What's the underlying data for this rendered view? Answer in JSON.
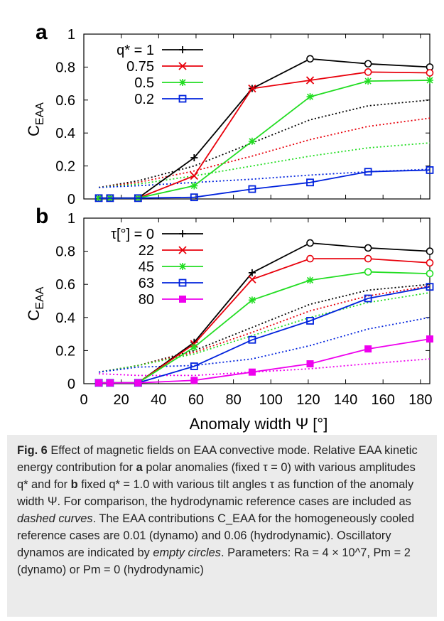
{
  "chart_data": [
    {
      "type": "line",
      "panel": "a",
      "ylabel": "C_EAA",
      "xlabel": "",
      "xlim": [
        0,
        185
      ],
      "ylim": [
        0,
        1
      ],
      "ytick_labels": [
        "0",
        "0.2",
        "0.4",
        "0.6",
        "0.8",
        "1"
      ],
      "legend_position": "top-left",
      "series": [
        {
          "name": "q* = 1",
          "color": "#000000",
          "marker": "plus",
          "x": [
            8,
            14,
            29,
            59,
            90,
            121,
            152,
            185
          ],
          "y": [
            0.005,
            0.005,
            0.005,
            0.25,
            0.67,
            0.85,
            0.82,
            0.8
          ],
          "open_circle_x": [
            121,
            152,
            185
          ]
        },
        {
          "name": "0.75",
          "color": "#e8000b",
          "marker": "x",
          "x": [
            8,
            14,
            29,
            59,
            90,
            121,
            152,
            185
          ],
          "y": [
            0.005,
            0.005,
            0.005,
            0.14,
            0.67,
            0.72,
            0.77,
            0.765
          ],
          "open_circle_x": [
            152,
            185
          ]
        },
        {
          "name": "0.5",
          "color": "#22dd22",
          "marker": "star",
          "x": [
            8,
            14,
            29,
            59,
            90,
            121,
            152,
            185
          ],
          "y": [
            0.005,
            0.005,
            0.005,
            0.08,
            0.35,
            0.62,
            0.715,
            0.72
          ],
          "open_circle_x": []
        },
        {
          "name": "0.2",
          "color": "#0022dd",
          "marker": "square",
          "x": [
            8,
            14,
            29,
            59,
            90,
            121,
            152,
            185
          ],
          "y": [
            0.005,
            0.005,
            0.005,
            0.01,
            0.06,
            0.1,
            0.165,
            0.175
          ],
          "open_circle_x": []
        }
      ],
      "reference_curves": [
        {
          "color": "#000000",
          "x": [
            8,
            29,
            59,
            90,
            121,
            152,
            185
          ],
          "y": [
            0.07,
            0.11,
            0.2,
            0.34,
            0.48,
            0.565,
            0.6
          ]
        },
        {
          "color": "#e8000b",
          "x": [
            8,
            29,
            59,
            90,
            121,
            152,
            185
          ],
          "y": [
            0.07,
            0.1,
            0.17,
            0.26,
            0.36,
            0.44,
            0.49
          ]
        },
        {
          "color": "#22dd22",
          "x": [
            8,
            29,
            59,
            90,
            121,
            152,
            185
          ],
          "y": [
            0.07,
            0.09,
            0.14,
            0.2,
            0.26,
            0.31,
            0.34
          ]
        },
        {
          "color": "#0022dd",
          "x": [
            8,
            29,
            59,
            90,
            121,
            152,
            185
          ],
          "y": [
            0.07,
            0.08,
            0.1,
            0.12,
            0.145,
            0.165,
            0.18
          ]
        }
      ]
    },
    {
      "type": "line",
      "panel": "b",
      "ylabel": "C_EAA",
      "xlabel": "Anomaly width Ψ [°]",
      "xlim": [
        0,
        185
      ],
      "ylim": [
        0,
        1
      ],
      "ytick_labels": [
        "0",
        "0.2",
        "0.4",
        "0.6",
        "0.8",
        "1"
      ],
      "xtick_labels": [
        "0",
        "20",
        "40",
        "60",
        "80",
        "100",
        "120",
        "140",
        "160",
        "180"
      ],
      "legend_position": "top-left",
      "series": [
        {
          "name": "τ[°] = 0",
          "color": "#000000",
          "marker": "plus",
          "x": [
            8,
            14,
            29,
            59,
            90,
            121,
            152,
            185
          ],
          "y": [
            0.005,
            0.005,
            0.005,
            0.25,
            0.67,
            0.85,
            0.82,
            0.8
          ],
          "open_circle_x": [
            121,
            152,
            185
          ]
        },
        {
          "name": "22",
          "color": "#e8000b",
          "marker": "x",
          "x": [
            8,
            14,
            29,
            59,
            90,
            121,
            152,
            185
          ],
          "y": [
            0.005,
            0.005,
            0.005,
            0.24,
            0.63,
            0.755,
            0.755,
            0.73
          ],
          "open_circle_x": [
            121,
            152,
            185
          ]
        },
        {
          "name": "45",
          "color": "#22dd22",
          "marker": "star",
          "x": [
            8,
            14,
            29,
            59,
            90,
            121,
            152,
            185
          ],
          "y": [
            0.005,
            0.005,
            0.005,
            0.22,
            0.505,
            0.625,
            0.675,
            0.665
          ],
          "open_circle_x": [
            152,
            185
          ]
        },
        {
          "name": "63",
          "color": "#0022dd",
          "marker": "square",
          "x": [
            8,
            14,
            29,
            59,
            90,
            121,
            152,
            185
          ],
          "y": [
            0.005,
            0.005,
            0.005,
            0.105,
            0.265,
            0.38,
            0.515,
            0.585
          ],
          "open_circle_x": []
        },
        {
          "name": "80",
          "color": "#ee00ee",
          "marker": "filled-square",
          "x": [
            8,
            14,
            29,
            59,
            90,
            121,
            152,
            185
          ],
          "y": [
            0.005,
            0.005,
            0.005,
            0.02,
            0.07,
            0.12,
            0.21,
            0.27
          ],
          "open_circle_x": []
        }
      ],
      "reference_curves": [
        {
          "color": "#000000",
          "x": [
            8,
            29,
            59,
            90,
            121,
            152,
            185
          ],
          "y": [
            0.07,
            0.11,
            0.2,
            0.34,
            0.48,
            0.565,
            0.6
          ]
        },
        {
          "color": "#e8000b",
          "x": [
            8,
            29,
            59,
            90,
            121,
            152,
            185
          ],
          "y": [
            0.07,
            0.11,
            0.19,
            0.31,
            0.44,
            0.53,
            0.59
          ]
        },
        {
          "color": "#22dd22",
          "x": [
            8,
            29,
            59,
            90,
            121,
            152,
            185
          ],
          "y": [
            0.07,
            0.11,
            0.18,
            0.29,
            0.4,
            0.49,
            0.55
          ]
        },
        {
          "color": "#0022dd",
          "x": [
            8,
            29,
            59,
            90,
            121,
            152,
            185
          ],
          "y": [
            0.07,
            0.1,
            0.11,
            0.15,
            0.23,
            0.33,
            0.4
          ]
        },
        {
          "color": "#ee00ee",
          "x": [
            8,
            29,
            59,
            90,
            121,
            152,
            185
          ],
          "y": [
            0.06,
            0.05,
            0.05,
            0.07,
            0.09,
            0.12,
            0.15
          ]
        }
      ]
    }
  ],
  "caption": {
    "fig_label": "Fig. 6",
    "text_1": " Effect of magnetic fields on EAA convective mode. Relative EAA kinetic energy contribution for ",
    "panel_a": "a",
    "text_2": " polar anomalies (fixed τ = 0) with various amplitudes q* and for ",
    "panel_b": "b",
    "text_3": " fixed q* = 1.0 with various tilt angles τ as function of the anomaly width Ψ. For comparison, the hydrodynamic reference cases are included as ",
    "dashed": "dashed curves",
    "text_4": ". The EAA contributions C_EAA for the homogeneously cooled reference cases are 0.01 (dynamo) and 0.06 (hydrodynamic). Oscillatory dynamos are indicated by ",
    "empty": "empty circles",
    "text_5": ". Parameters: Ra = 4 × 10^7, Pm = 2 (dynamo) or Pm = 0 (hydrodynamic)"
  }
}
